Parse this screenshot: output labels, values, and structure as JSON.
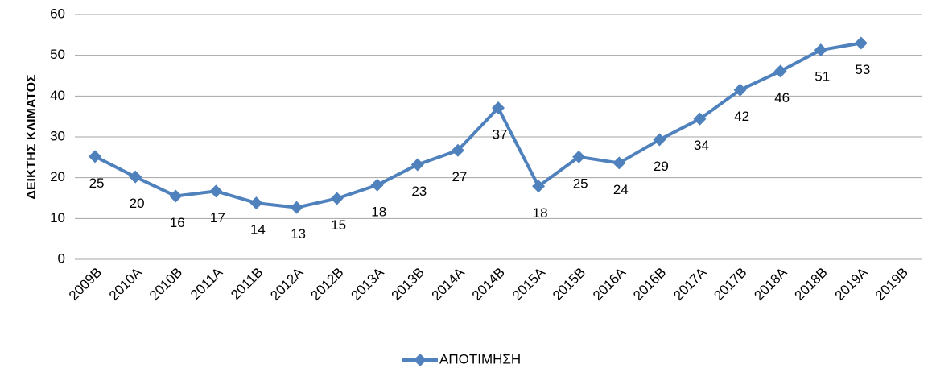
{
  "chart_data": {
    "type": "line",
    "y_axis_label": "ΔΕΙΚΤΗΣ ΚΛΙΜΑΤΟΣ",
    "categories": [
      "2009B",
      "2010A",
      "2010B",
      "2011A",
      "2011B",
      "2012A",
      "2012B",
      "2013A",
      "2013B",
      "2014A",
      "2014B",
      "2015A",
      "2015B",
      "2016A",
      "2016B",
      "2017A",
      "2017B",
      "2018A",
      "2018B",
      "2019A",
      "2019B"
    ],
    "series": [
      {
        "name": "ΑΠΟΤΙΜΗΣΗ",
        "color": "#4f81bd",
        "values": [
          25.2,
          20.2,
          15.5,
          16.7,
          13.8,
          12.7,
          14.9,
          18.2,
          23.2,
          26.7,
          37.1,
          17.9,
          25.1,
          23.6,
          29.3,
          34.4,
          41.5,
          46.1,
          51.3,
          53.0,
          null
        ],
        "value_labels": [
          "25",
          "20",
          "16",
          "17",
          "14",
          "13",
          "15",
          "18",
          "23",
          "27",
          "37",
          "18",
          "25",
          "24",
          "29",
          "34",
          "42",
          "46",
          "51",
          "53",
          null
        ]
      }
    ],
    "ylim": [
      0,
      60
    ],
    "yticks": [
      0,
      10,
      20,
      30,
      40,
      50,
      60
    ],
    "grid": true,
    "legend": "bottom"
  }
}
